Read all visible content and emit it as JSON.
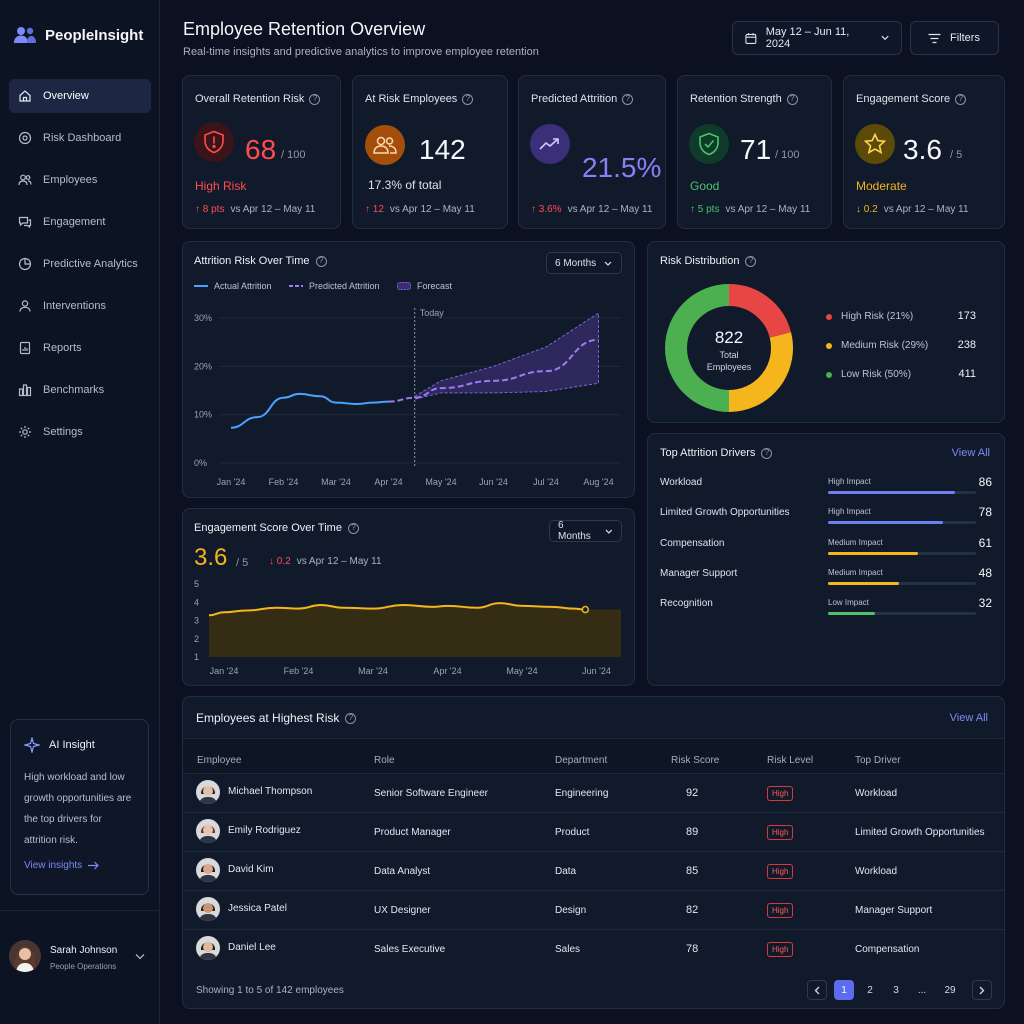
{
  "app": {
    "name": "PeopleInsight"
  },
  "nav": {
    "items": [
      {
        "label": "Overview"
      },
      {
        "label": "Risk Dashboard"
      },
      {
        "label": "Employees"
      },
      {
        "label": "Engagement"
      },
      {
        "label": "Predictive Analytics"
      },
      {
        "label": "Interventions"
      },
      {
        "label": "Reports"
      },
      {
        "label": "Benchmarks"
      },
      {
        "label": "Settings"
      }
    ],
    "active": "Overview"
  },
  "ai_insight": {
    "title": "AI Insight",
    "text": "High workload and low growth opportunities are the top drivers for attrition risk.",
    "link": "View insights"
  },
  "user": {
    "name": "Sarah Johnson",
    "role": "People Operations"
  },
  "header": {
    "title": "Employee Retention Overview",
    "subtitle": "Real-time insights and predictive analytics to improve employee retention",
    "date_range": "May 12 – Jun 11, 2024",
    "filters_label": "Filters"
  },
  "kpis": [
    {
      "label": "Overall Retention Risk",
      "value": "68",
      "suffix": "/ 100",
      "status": "High Risk",
      "delta": "8 pts",
      "delta_dir": "up",
      "compare": "vs Apr 12 – May 11",
      "icon": "shield-alert-icon",
      "status_color": "#ff4d4f",
      "delta_color": "#ff4d4f"
    },
    {
      "label": "At Risk Employees",
      "value": "142",
      "suffix": "",
      "status": "17.3% of total",
      "delta": "12",
      "delta_dir": "up",
      "compare": "vs Apr 12 – May 11",
      "icon": "users-icon",
      "status_color": "#dfe3ec",
      "delta_color": "#ff4d4f"
    },
    {
      "label": "Predicted Attrition",
      "value": "21.5%",
      "suffix": "",
      "status": "",
      "delta": "3.6%",
      "delta_dir": "up",
      "compare": "vs Apr 12 – May 11",
      "icon": "trend-up-icon",
      "status_color": "",
      "delta_color": "#ff4d4f"
    },
    {
      "label": "Retention Strength",
      "value": "71",
      "suffix": "/ 100",
      "status": "Good",
      "delta": "5 pts",
      "delta_dir": "up",
      "compare": "vs Apr 12 – May 11",
      "icon": "shield-check-icon",
      "status_color": "#4cc36b",
      "delta_color": "#4cc36b"
    },
    {
      "label": "Engagement Score",
      "value": "3.6",
      "suffix": "/ 5",
      "status": "Moderate",
      "delta": "0.2",
      "delta_dir": "down",
      "compare": "vs Apr 12 – May 11",
      "icon": "star-icon",
      "status_color": "#f5b51c",
      "delta_color": "#f5b51c"
    }
  ],
  "attrition_chart": {
    "title": "Attrition Risk Over Time",
    "range": "6 Months",
    "legend": [
      "Actual Attrition",
      "Predicted Attrition",
      "Forecast"
    ],
    "today_label": "Today"
  },
  "engagement_chart": {
    "title": "Engagement Score Over Time",
    "range": "6 Months",
    "value": "3.6",
    "suffix": "/ 5",
    "delta": "0.2",
    "compare": "vs Apr 12 – May 11"
  },
  "chart_data": [
    {
      "type": "line",
      "title": "Attrition Risk Over Time",
      "x": [
        "Jan '24",
        "Feb '24",
        "Mar '24",
        "Apr '24",
        "May '24",
        "Jun '24",
        "Jul '24",
        "Aug '24"
      ],
      "yticks": [
        "30%",
        "20%",
        "10%",
        "0%"
      ],
      "ylim": [
        0,
        30
      ],
      "series": [
        {
          "name": "Actual Attrition",
          "points": [
            [
              0,
              7.3
            ],
            [
              0.5,
              9.5
            ],
            [
              1,
              13.5
            ],
            [
              1.3,
              14.3
            ],
            [
              1.7,
              13.8
            ],
            [
              2,
              12.5
            ],
            [
              2.4,
              12.2
            ],
            [
              2.7,
              12.5
            ],
            [
              3,
              12.7
            ]
          ]
        },
        {
          "name": "Predicted Attrition",
          "points": [
            [
              3,
              12.7
            ],
            [
              3.5,
              13.5
            ],
            [
              4,
              15.5
            ],
            [
              5,
              17
            ],
            [
              6,
              19
            ],
            [
              7,
              25.5
            ]
          ]
        },
        {
          "name": "Forecast",
          "upper": [
            [
              3.5,
              13.8
            ],
            [
              4,
              17
            ],
            [
              5,
              20
            ],
            [
              6,
              24
            ],
            [
              7,
              31
            ]
          ],
          "lower": [
            [
              3.5,
              13.2
            ],
            [
              4,
              14.5
            ],
            [
              5,
              14.5
            ],
            [
              6,
              14.8
            ],
            [
              7,
              16.5
            ]
          ]
        }
      ],
      "today_x": 3.5
    },
    {
      "type": "area",
      "title": "Engagement Score Over Time",
      "x": [
        "Jan '24",
        "Feb '24",
        "Mar '24",
        "Apr '24",
        "May '24",
        "Jun '24"
      ],
      "yticks": [
        "5",
        "4",
        "3",
        "2",
        "1"
      ],
      "ylim": [
        1,
        5
      ],
      "series": [
        {
          "name": "Engagement Score",
          "points": [
            [
              0,
              3.45
            ],
            [
              0.3,
              3.55
            ],
            [
              0.7,
              3.7
            ],
            [
              1,
              3.65
            ],
            [
              1.3,
              3.85
            ],
            [
              1.6,
              3.7
            ],
            [
              2,
              3.65
            ],
            [
              2.4,
              3.85
            ],
            [
              2.8,
              3.75
            ],
            [
              3,
              3.8
            ],
            [
              3.4,
              3.7
            ],
            [
              3.7,
              3.95
            ],
            [
              4,
              3.8
            ],
            [
              4.4,
              3.75
            ],
            [
              4.7,
              3.65
            ],
            [
              4.85,
              3.6
            ]
          ]
        }
      ]
    },
    {
      "type": "pie",
      "title": "Risk Distribution",
      "total": "822",
      "total_label": "Total Employees",
      "slices": [
        {
          "label": "High Risk (21%)",
          "value": 173,
          "color": "#e84545"
        },
        {
          "label": "Medium Risk (29%)",
          "value": 238,
          "color": "#f5b51c"
        },
        {
          "label": "Low Risk (50%)",
          "value": 411,
          "color": "#4caf50"
        }
      ]
    },
    {
      "type": "bar",
      "title": "Top Attrition Drivers",
      "categories": [
        "Workload",
        "Limited Growth Opportunities",
        "Compensation",
        "Manager Support",
        "Recognition"
      ],
      "values": [
        86,
        78,
        61,
        48,
        32
      ],
      "impacts": [
        "High Impact",
        "High Impact",
        "Medium Impact",
        "Medium Impact",
        "Low Impact"
      ],
      "colors": [
        "#6f7ff0",
        "#6f7ff0",
        "#f5b51c",
        "#f5b51c",
        "#4cc36b"
      ],
      "xlim": [
        0,
        100
      ]
    }
  ],
  "risk_distribution": {
    "title": "Risk Distribution"
  },
  "drivers": {
    "title": "Top Attrition Drivers",
    "view_all": "View All"
  },
  "table": {
    "title": "Employees at Highest Risk",
    "view_all": "View All",
    "columns": [
      "Employee",
      "Role",
      "Department",
      "Risk Score",
      "Risk Level",
      "Top Driver"
    ],
    "rows": [
      {
        "name": "Michael Thompson",
        "role": "Senior Software Engineer",
        "dept": "Engineering",
        "score": "92",
        "level": "High",
        "driver": "Workload"
      },
      {
        "name": "Emily Rodriguez",
        "role": "Product Manager",
        "dept": "Product",
        "score": "89",
        "level": "High",
        "driver": "Limited Growth Opportunities"
      },
      {
        "name": "David Kim",
        "role": "Data Analyst",
        "dept": "Data",
        "score": "85",
        "level": "High",
        "driver": "Workload"
      },
      {
        "name": "Jessica Patel",
        "role": "UX Designer",
        "dept": "Design",
        "score": "82",
        "level": "High",
        "driver": "Manager Support"
      },
      {
        "name": "Daniel Lee",
        "role": "Sales Executive",
        "dept": "Sales",
        "score": "78",
        "level": "High",
        "driver": "Compensation"
      }
    ],
    "footer": "Showing 1 to 5 of  142 employees",
    "pages": [
      "1",
      "2",
      "3",
      "...",
      "29"
    ],
    "current_page": "1"
  }
}
